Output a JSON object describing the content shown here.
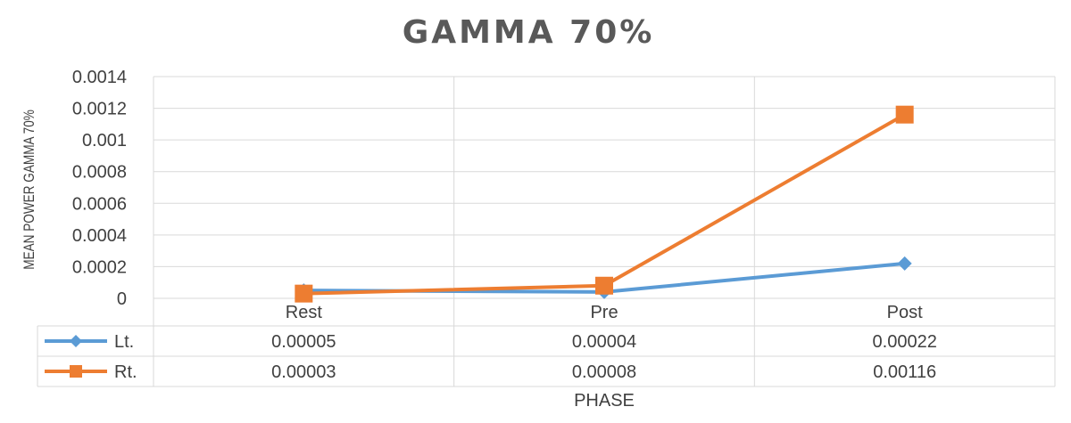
{
  "chart_data": {
    "type": "line",
    "title": "GAMMA 70%",
    "xlabel": "PHASE",
    "ylabel": "MEAN POWER GAMMA 70%",
    "categories": [
      "Rest",
      "Pre",
      "Post"
    ],
    "ylim": [
      0,
      0.0014
    ],
    "yticks": [
      "0.0014",
      "0.0012",
      "0.001",
      "0.0008",
      "0.0006",
      "0.0004",
      "0.0002",
      "0"
    ],
    "grid": true,
    "legend": "data-table",
    "series": [
      {
        "name": "Lt.",
        "values": [
          5e-05,
          4e-05,
          0.00022
        ],
        "labels": [
          "0.00005",
          "0.00004",
          "0.00022"
        ],
        "color": "#5B9BD5",
        "marker": "diamond"
      },
      {
        "name": "Rt.",
        "values": [
          3e-05,
          8e-05,
          0.00116
        ],
        "labels": [
          "0.00003",
          "0.00008",
          "0.00116"
        ],
        "color": "#ED7D31",
        "marker": "square"
      }
    ]
  }
}
